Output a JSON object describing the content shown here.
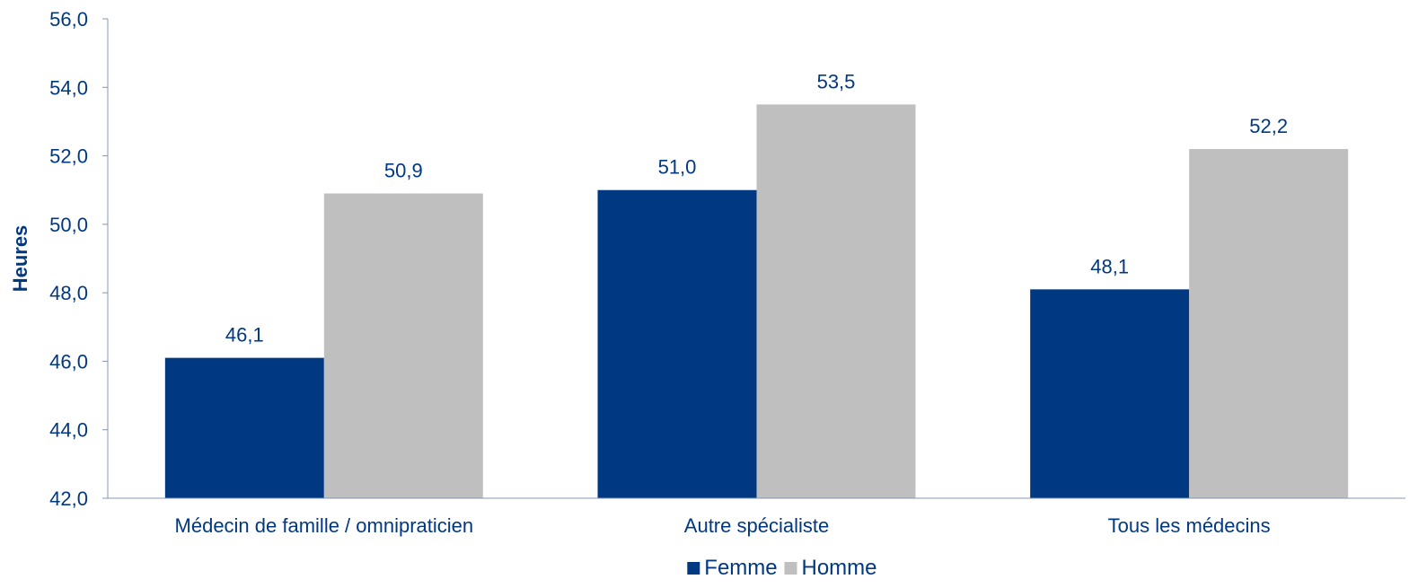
{
  "chart_data": {
    "type": "bar",
    "categories": [
      "Médecin de famille / omnipraticien",
      "Autre spécialiste",
      "Tous les médecins"
    ],
    "series": [
      {
        "name": "Femme",
        "values": [
          46.1,
          51.0,
          48.1
        ],
        "color": "#003882",
        "labels": [
          "46,1",
          "51,0",
          "48,1"
        ]
      },
      {
        "name": "Homme",
        "values": [
          50.9,
          53.5,
          52.2
        ],
        "color": "#BFBFBF",
        "labels": [
          "50,9",
          "53,5",
          "52,2"
        ]
      }
    ],
    "title": "",
    "xlabel": "",
    "ylabel": "Heures",
    "ylim": [
      42,
      56
    ],
    "yticks": [
      42,
      44,
      46,
      48,
      50,
      52,
      54,
      56
    ],
    "ytick_labels": [
      "42,0",
      "44,0",
      "46,0",
      "48,0",
      "50,0",
      "52,0",
      "54,0",
      "56,0"
    ],
    "grid": false,
    "legend": "bottom-center",
    "text_color": "#003882",
    "axis_color": "#8497B0"
  }
}
